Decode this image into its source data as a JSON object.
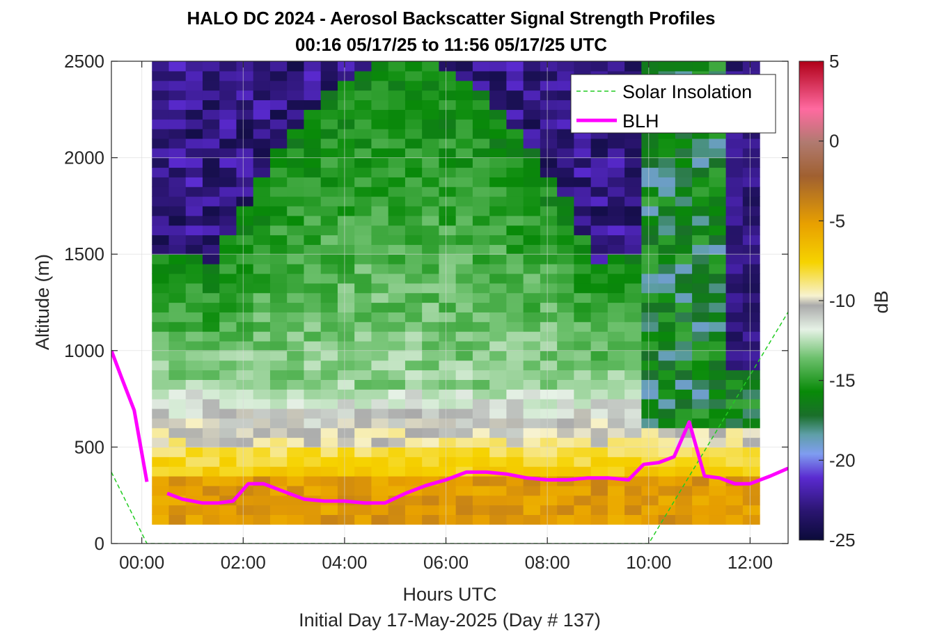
{
  "chart_data": {
    "type": "heatmap",
    "title_line1": "HALO DC 2024 - Aerosol Backscatter Signal Strength Profiles",
    "title_line2": "00:16 05/17/25 to 11:56 05/17/25  UTC",
    "xlabel": "Hours UTC",
    "xlabel2": "Initial Day 17-May-2025 (Day # 137)",
    "ylabel": "Altitude (m)",
    "xlim_hours": [
      -0.6,
      12.75
    ],
    "ylim": [
      0,
      2500
    ],
    "x_ticks": [
      0,
      2,
      4,
      6,
      8,
      10,
      12
    ],
    "x_tick_labels": [
      "00:00",
      "02:00",
      "04:00",
      "06:00",
      "08:00",
      "10:00",
      "12:00"
    ],
    "y_ticks": [
      0,
      500,
      1000,
      1500,
      2000,
      2500
    ],
    "y_tick_labels": [
      "0",
      "500",
      "1000",
      "1500",
      "2000",
      "2500"
    ],
    "colorbar": {
      "label": "dB",
      "range": [
        -25,
        5
      ],
      "ticks": [
        5,
        0,
        -5,
        -10,
        -15,
        -20,
        -25
      ],
      "tick_labels": [
        "5",
        "0",
        "-5",
        "-10",
        "-15",
        "-20",
        "-25"
      ]
    },
    "legend": {
      "position": "top-right",
      "entries": [
        {
          "label": "Solar Insolation",
          "color": "#22cc22",
          "style": "dashed"
        },
        {
          "label": "BLH",
          "color": "#ff00ff",
          "style": "solid"
        }
      ]
    },
    "heatmap": {
      "time_start_hour": 0.2,
      "time_end_hour": 12.0,
      "time_step_hours": 0.333,
      "alt_start_m": 100,
      "alt_top_m": 2500,
      "alt_step_m": 50,
      "note_values_db": "estimated layer structure: ~-6 dB near surface, ~-16 dB in mid boundary layer, ~-23 dB free troposphere"
    },
    "series": [
      {
        "name": "BLH",
        "x": [
          -0.6,
          -0.4,
          -0.15,
          0.1,
          0.5,
          0.8,
          1.2,
          1.5,
          1.8,
          2.1,
          2.4,
          2.8,
          3.2,
          3.6,
          4.0,
          4.4,
          4.8,
          5.2,
          5.6,
          6.0,
          6.4,
          6.8,
          7.2,
          7.6,
          8.0,
          8.4,
          8.8,
          9.2,
          9.6,
          9.9,
          10.2,
          10.5,
          10.8,
          11.1,
          11.4,
          11.7,
          12.0,
          12.4,
          12.75
        ],
        "y": [
          1000,
          860,
          690,
          320,
          260,
          230,
          210,
          210,
          220,
          310,
          310,
          270,
          230,
          220,
          220,
          210,
          210,
          260,
          300,
          330,
          370,
          370,
          360,
          340,
          330,
          330,
          340,
          340,
          330,
          410,
          420,
          450,
          630,
          350,
          340,
          310,
          310,
          350,
          390
        ]
      },
      {
        "name": "Solar Insolation",
        "x": [
          -0.6,
          0.1,
          10.0,
          12.75
        ],
        "y": [
          370,
          0,
          0,
          1200
        ]
      }
    ]
  }
}
